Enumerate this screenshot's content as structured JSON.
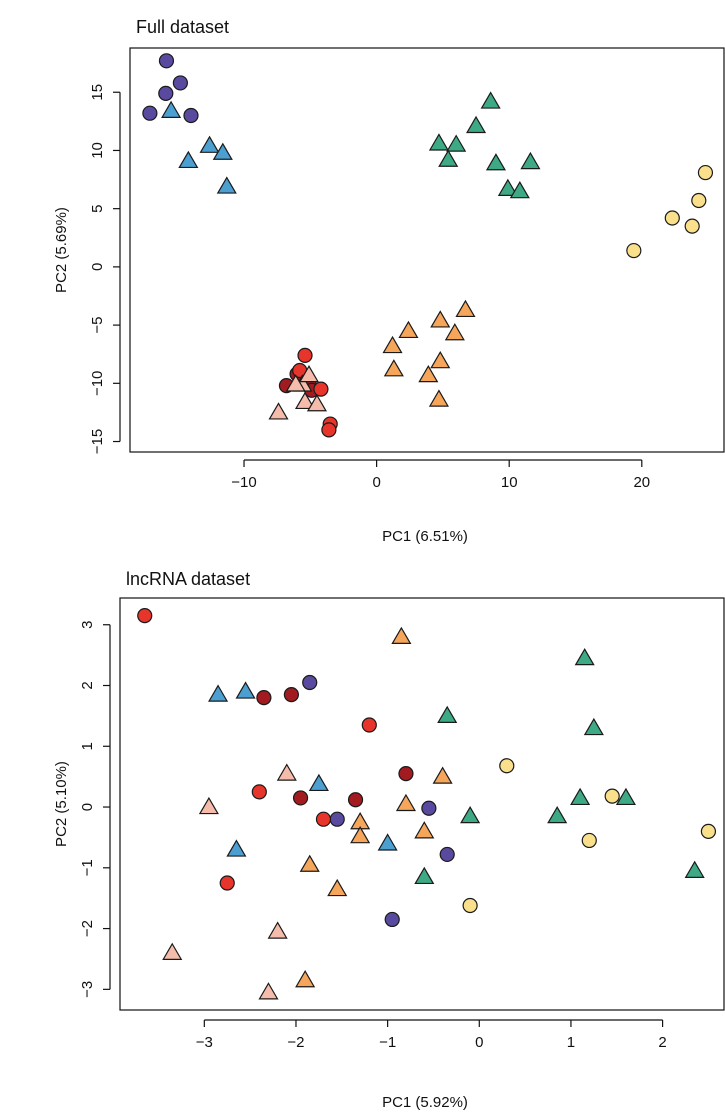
{
  "chart_data": [
    {
      "type": "scatter",
      "title": "Full dataset",
      "xlabel": "PC1 (6.51%)",
      "ylabel": "PC2 (5.69%)",
      "xlim": [
        -18.6,
        26.2
      ],
      "ylim": [
        -15.9,
        18.8
      ],
      "xticks": [
        {
          "value": -10,
          "label": "−10"
        },
        0,
        10,
        20
      ],
      "yticks": [
        {
          "value": -15,
          "label": "−15"
        },
        {
          "value": -10,
          "label": "−10"
        },
        {
          "value": -5,
          "label": "−5"
        },
        0,
        5,
        10,
        15
      ],
      "series": [
        {
          "color": "#5a4a9f",
          "marker": "circle",
          "x": [
            -15.85,
            -15.9,
            -14.8,
            -17.1,
            -14.0
          ],
          "y": [
            17.7,
            14.9,
            15.8,
            13.2,
            13.0
          ]
        },
        {
          "color": "#4b9fd1",
          "marker": "triangle",
          "x": [
            -15.5,
            -14.2,
            -12.6,
            -11.6,
            -11.3
          ],
          "y": [
            13.4,
            9.1,
            10.4,
            9.8,
            6.9
          ]
        },
        {
          "color": "#3daa85",
          "marker": "triangle",
          "x": [
            4.7,
            6.0,
            5.4,
            7.5,
            8.6,
            9.0,
            9.9,
            10.8,
            11.6
          ],
          "y": [
            10.6,
            10.5,
            9.2,
            12.1,
            14.2,
            8.9,
            6.7,
            6.5,
            9.0
          ]
        },
        {
          "color": "#fbe08c",
          "marker": "circle",
          "x": [
            19.4,
            22.3,
            23.8,
            24.3,
            24.8
          ],
          "y": [
            1.4,
            4.2,
            3.5,
            5.7,
            8.1
          ]
        },
        {
          "color": "#f5a65b",
          "marker": "triangle",
          "x": [
            1.2,
            2.4,
            1.3,
            3.9,
            4.8,
            4.8,
            5.9,
            6.7,
            4.7
          ],
          "y": [
            -6.8,
            -5.5,
            -8.8,
            -9.3,
            -4.6,
            -8.1,
            -5.7,
            -3.7,
            -11.4
          ]
        },
        {
          "color": "#a11b21",
          "marker": "circle",
          "x": [
            -6.8,
            -5.1,
            -4.9,
            -6.0
          ],
          "y": [
            -10.2,
            -10.0,
            -10.6,
            -9.2
          ]
        },
        {
          "color": "#e8352c",
          "marker": "circle",
          "x": [
            -5.4,
            -4.2,
            -3.5,
            -3.6,
            -5.8
          ],
          "y": [
            -7.6,
            -10.5,
            -13.5,
            -14.0,
            -8.9
          ]
        },
        {
          "color": "#f6bcab",
          "marker": "triangle",
          "x": [
            -7.4,
            -5.4,
            -4.5,
            -5.6,
            -5.1,
            -6.1
          ],
          "y": [
            -12.5,
            -11.6,
            -11.8,
            -10.1,
            -9.3,
            -10.1
          ]
        }
      ]
    },
    {
      "type": "scatter",
      "title": "lncRNA dataset",
      "xlabel": "PC1 (5.92%)",
      "ylabel": "PC2 (5.10%)",
      "xlim": [
        -3.92,
        2.67
      ],
      "ylim": [
        -3.34,
        3.44
      ],
      "xticks": [
        {
          "value": -3,
          "label": "−3"
        },
        {
          "value": -2,
          "label": "−2"
        },
        {
          "value": -1,
          "label": "−1"
        },
        0,
        1,
        2
      ],
      "yticks": [
        {
          "value": -3,
          "label": "−3"
        },
        {
          "value": -2,
          "label": "−2"
        },
        {
          "value": -1,
          "label": "−1"
        },
        0,
        1,
        2,
        3
      ],
      "series": [
        {
          "color": "#5a4a9f",
          "marker": "circle",
          "x": [
            -1.85,
            -1.55,
            -0.55,
            -0.35,
            -0.95
          ],
          "y": [
            2.05,
            -0.2,
            -0.02,
            -0.78,
            -1.85
          ]
        },
        {
          "color": "#4b9fd1",
          "marker": "triangle",
          "x": [
            -2.85,
            -2.55,
            -1.75,
            -2.65,
            -1.0
          ],
          "y": [
            1.85,
            1.9,
            0.38,
            -0.7,
            -0.6
          ]
        },
        {
          "color": "#a11b21",
          "marker": "circle",
          "x": [
            -2.35,
            -2.05,
            -1.95,
            -1.35,
            -0.8
          ],
          "y": [
            1.8,
            1.85,
            0.15,
            0.12,
            0.55
          ]
        },
        {
          "color": "#e8352c",
          "marker": "circle",
          "x": [
            -3.65,
            -1.2,
            -2.4,
            -1.7,
            -2.75
          ],
          "y": [
            3.15,
            1.35,
            0.25,
            -0.2,
            -1.25
          ]
        },
        {
          "color": "#f6bcab",
          "marker": "triangle",
          "x": [
            -2.1,
            -2.95,
            -2.2,
            -3.35,
            -2.3
          ],
          "y": [
            0.55,
            0.0,
            -2.05,
            -2.4,
            -3.05
          ]
        },
        {
          "color": "#f5a65b",
          "marker": "triangle",
          "x": [
            -0.85,
            -0.4,
            -0.8,
            -1.3,
            -1.3,
            -0.6,
            -1.85,
            -1.55,
            -1.9
          ],
          "y": [
            2.8,
            0.5,
            0.05,
            -0.25,
            -0.48,
            -0.4,
            -0.95,
            -1.35,
            -2.85
          ]
        },
        {
          "color": "#3daa85",
          "marker": "triangle",
          "x": [
            1.15,
            -0.35,
            1.25,
            -0.1,
            -0.6,
            0.85,
            1.1,
            1.6,
            2.35
          ],
          "y": [
            2.45,
            1.5,
            1.3,
            -0.15,
            -1.15,
            -0.15,
            0.15,
            0.15,
            -1.05
          ]
        },
        {
          "color": "#fbe08c",
          "marker": "circle",
          "x": [
            0.3,
            1.45,
            1.2,
            2.5,
            -0.1
          ],
          "y": [
            0.68,
            0.18,
            -0.55,
            -0.4,
            -1.62
          ]
        }
      ]
    }
  ]
}
